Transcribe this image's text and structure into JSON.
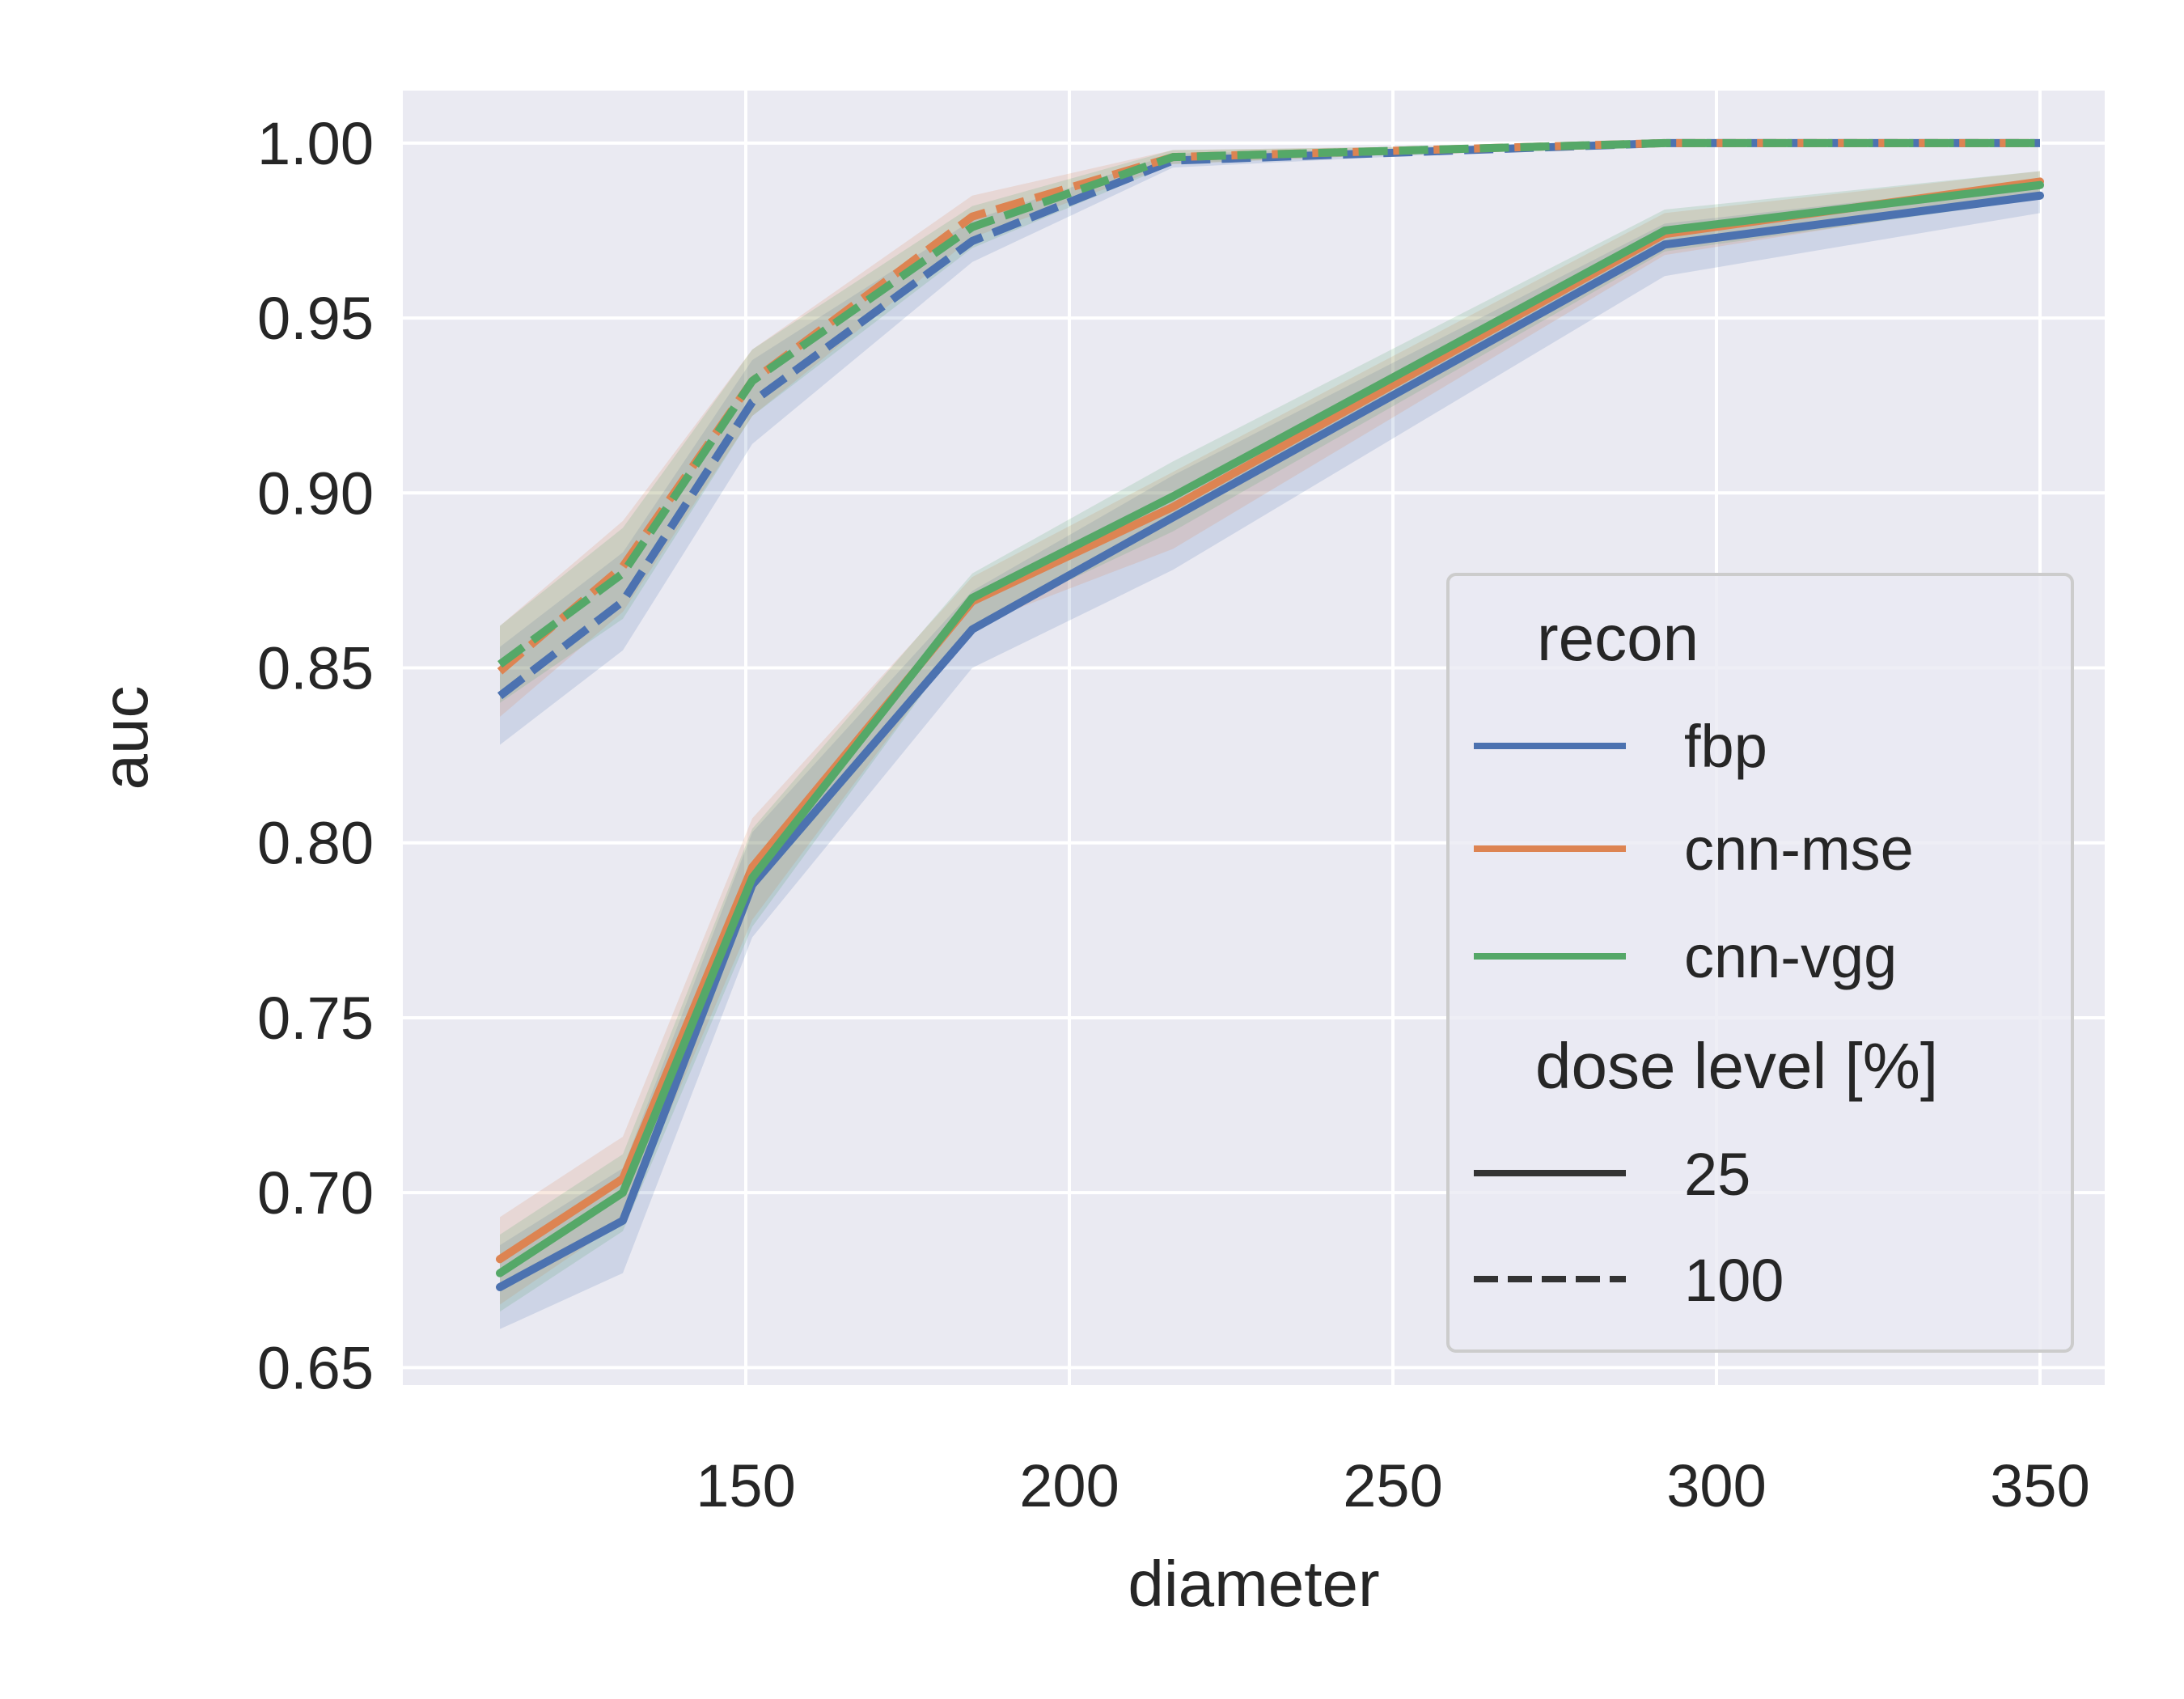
{
  "chart_data": {
    "type": "line",
    "xlabel": "diameter",
    "ylabel": "auc",
    "xlim": [
      97,
      360
    ],
    "ylim": [
      0.645,
      1.015
    ],
    "xticks": [
      150,
      200,
      250,
      300,
      350
    ],
    "yticks": [
      0.65,
      0.7,
      0.75,
      0.8,
      0.85,
      0.9,
      0.95,
      1.0
    ],
    "grid": true,
    "legend_placement": "lower-right",
    "x": [
      112,
      131,
      151,
      185,
      216,
      292,
      350
    ],
    "series": [
      {
        "name": "fbp",
        "recon": "fbp",
        "dose": "25",
        "color": "#4c72b0",
        "dash": "solid",
        "values": [
          0.673,
          0.692,
          0.788,
          0.861,
          0.893,
          0.971,
          0.985
        ],
        "lower": [
          0.661,
          0.677,
          0.773,
          0.85,
          0.878,
          0.962,
          0.98
        ],
        "upper": [
          0.685,
          0.707,
          0.803,
          0.872,
          0.905,
          0.977,
          0.989
        ]
      },
      {
        "name": "cnn-mse",
        "recon": "cnn-mse",
        "dose": "25",
        "color": "#dd8452",
        "dash": "solid",
        "values": [
          0.681,
          0.704,
          0.793,
          0.869,
          0.896,
          0.974,
          0.989
        ],
        "lower": [
          0.668,
          0.692,
          0.778,
          0.862,
          0.884,
          0.968,
          0.985
        ],
        "upper": [
          0.693,
          0.716,
          0.807,
          0.876,
          0.906,
          0.98,
          0.992
        ]
      },
      {
        "name": "cnn-vgg",
        "recon": "cnn-vgg",
        "dose": "25",
        "color": "#55a868",
        "dash": "solid",
        "values": [
          0.677,
          0.7,
          0.79,
          0.87,
          0.899,
          0.975,
          0.988
        ],
        "lower": [
          0.666,
          0.689,
          0.776,
          0.862,
          0.889,
          0.969,
          0.984
        ],
        "upper": [
          0.688,
          0.711,
          0.804,
          0.877,
          0.909,
          0.981,
          0.992
        ]
      },
      {
        "name": "fbp",
        "recon": "fbp",
        "dose": "100",
        "color": "#4c72b0",
        "dash": "dashed",
        "values": [
          0.842,
          0.869,
          0.926,
          0.972,
          0.995,
          1.0,
          1.0
        ],
        "lower": [
          0.828,
          0.855,
          0.914,
          0.966,
          0.993,
          1.0,
          1.0
        ],
        "upper": [
          0.856,
          0.883,
          0.938,
          0.978,
          0.997,
          1.0,
          1.0
        ]
      },
      {
        "name": "cnn-mse",
        "recon": "cnn-mse",
        "dose": "100",
        "color": "#dd8452",
        "dash": "dashed",
        "values": [
          0.849,
          0.879,
          0.932,
          0.979,
          0.996,
          1.0,
          1.0
        ],
        "lower": [
          0.836,
          0.866,
          0.922,
          0.973,
          0.994,
          1.0,
          1.0
        ],
        "upper": [
          0.862,
          0.892,
          0.941,
          0.985,
          0.998,
          1.0,
          1.0
        ]
      },
      {
        "name": "cnn-vgg",
        "recon": "cnn-vgg",
        "dose": "100",
        "color": "#55a868",
        "dash": "dashed",
        "values": [
          0.851,
          0.877,
          0.932,
          0.976,
          0.996,
          1.0,
          1.0
        ],
        "lower": [
          0.84,
          0.864,
          0.922,
          0.97,
          0.994,
          1.0,
          1.0
        ],
        "upper": [
          0.862,
          0.89,
          0.941,
          0.982,
          0.998,
          1.0,
          1.0
        ]
      }
    ],
    "legend": {
      "recon_title": "recon",
      "recon_entries": [
        {
          "label": "fbp",
          "color": "#4c72b0"
        },
        {
          "label": "cnn-mse",
          "color": "#dd8452"
        },
        {
          "label": "cnn-vgg",
          "color": "#55a868"
        }
      ],
      "dose_title": "dose level [%]",
      "dose_entries": [
        {
          "label": "25",
          "dash": "solid"
        },
        {
          "label": "100",
          "dash": "dashed"
        }
      ]
    }
  }
}
